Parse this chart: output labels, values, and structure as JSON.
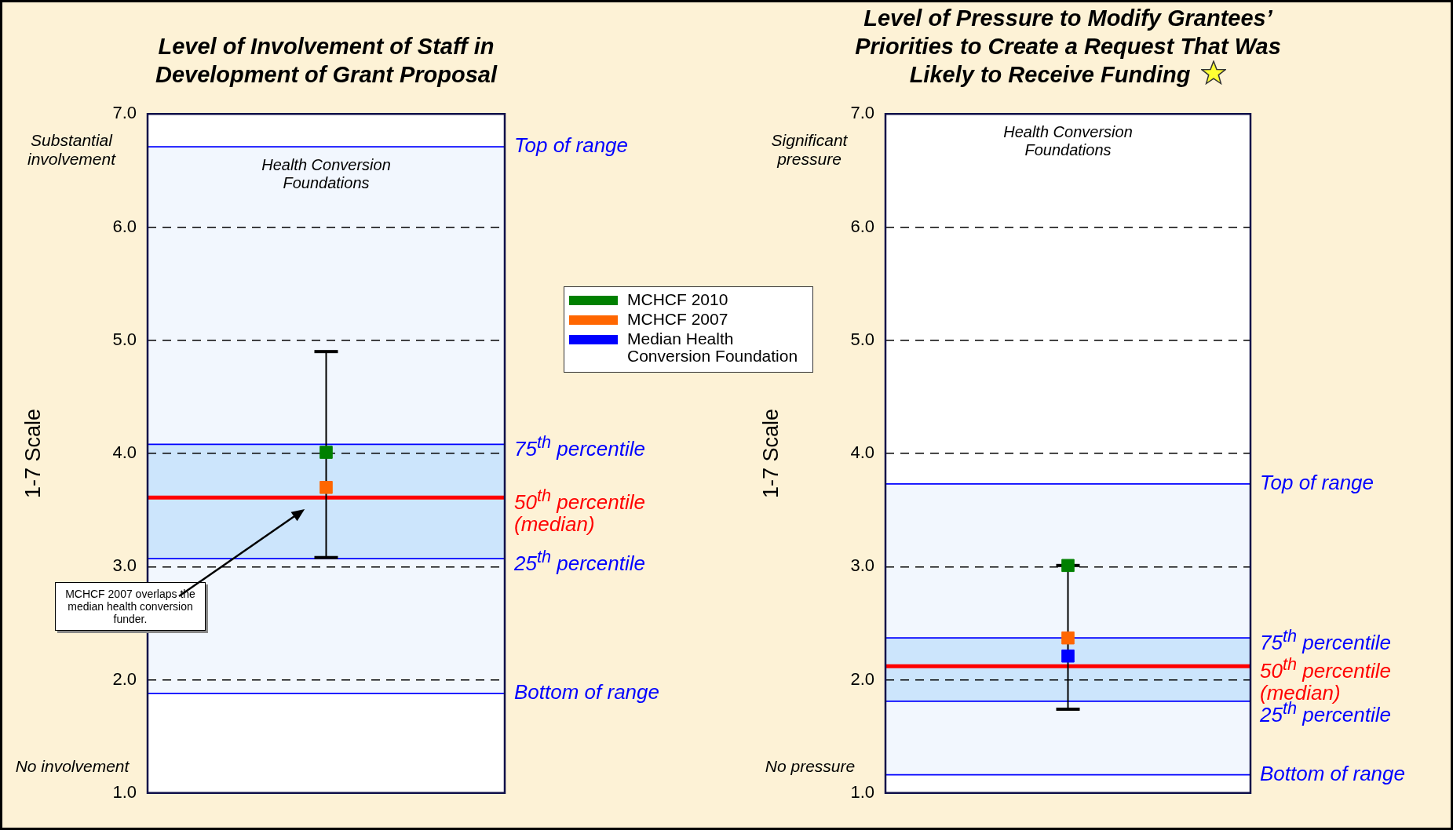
{
  "chart_data": [
    {
      "type": "scatter",
      "title": "Level of Involvement of Staff in Development of Grant Proposal",
      "ylabel": "1-7 Scale",
      "categories": [
        null
      ],
      "series": [
        {
          "name": "MCHCF 2010",
          "color": "#008000",
          "values": [
            4.01
          ],
          "errors": [
            [
              3.08,
              4.9
            ]
          ]
        },
        {
          "name": "MCHCF 2007",
          "color": "#ff6600",
          "values": [
            3.7
          ]
        },
        {
          "name": "Median Health Conversion Foundation",
          "color": "#0000ff",
          "values": [
            null
          ]
        }
      ],
      "ylim": [
        1,
        7
      ],
      "yticks": [
        {
          "value": 1,
          "label": "1.0"
        },
        {
          "value": 2,
          "label": "2.0"
        },
        {
          "value": 3,
          "label": "3.0"
        },
        {
          "value": 4,
          "label": "4.0"
        },
        {
          "value": 5,
          "label": "5.0"
        },
        {
          "value": 6,
          "label": "6.0"
        },
        {
          "value": 7,
          "label": "7.0"
        }
      ],
      "grid": "y",
      "legend": "right",
      "tick_labels": "y",
      "bands": [
        {
          "axis": "y",
          "from": 1.88,
          "to": 6.71,
          "color": "#f2f7fe"
        },
        {
          "axis": "y",
          "from": 3.07,
          "to": 4.08,
          "color": "#cce5fc"
        }
      ],
      "ref_lines": [
        {
          "axis": "y",
          "value": 6.71,
          "label": "Top of range",
          "color": "#0000ff"
        },
        {
          "axis": "y",
          "value": 4.08,
          "label": "75$^{th}$ percentile",
          "color": "#0000ff"
        },
        {
          "axis": "y",
          "value": 3.61,
          "label": "50$^{th}$ percentile (median)",
          "color": "#ff0000"
        },
        {
          "axis": "y",
          "value": 3.07,
          "label": "25$^{th}$ percentile",
          "color": "#0000ff"
        },
        {
          "axis": "y",
          "value": 1.88,
          "label": "Bottom of range",
          "color": "#0000ff"
        }
      ],
      "annotations": [
        "Substantial involvement",
        "No involvement",
        "Health Conversion Foundations",
        "MCHCF 2007 overlaps the median health conversion funder."
      ],
      "marker": "square"
    },
    {
      "type": "scatter",
      "title": "Level of Pressure to Modify Grantees’ Priorities to Create a Request That Was Likely to Receive Funding",
      "ylabel": "1-7 Scale",
      "categories": [
        null
      ],
      "series": [
        {
          "color": "#008000",
          "values": [
            3.01
          ],
          "errors": [
            [
              1.74,
              3.01
            ]
          ]
        },
        {
          "color": "#ff6600",
          "values": [
            2.37
          ]
        },
        {
          "color": "#0000ff",
          "values": [
            2.21
          ]
        }
      ],
      "ylim": [
        1,
        7
      ],
      "yticks": [
        {
          "value": 1,
          "label": "1.0"
        },
        {
          "value": 2,
          "label": "2.0"
        },
        {
          "value": 3,
          "label": "3.0"
        },
        {
          "value": 4,
          "label": "4.0"
        },
        {
          "value": 5,
          "label": "5.0"
        },
        {
          "value": 6,
          "label": "6.0"
        },
        {
          "value": 7,
          "label": "7.0"
        }
      ],
      "grid": "y",
      "tick_labels": "y",
      "bands": [
        {
          "axis": "y",
          "from": 1.16,
          "to": 3.73,
          "color": "#f2f7fe"
        },
        {
          "axis": "y",
          "from": 1.81,
          "to": 2.37,
          "color": "#cce5fc"
        }
      ],
      "ref_lines": [
        {
          "axis": "y",
          "value": 3.73,
          "label": "Top of range",
          "color": "#0000ff"
        },
        {
          "axis": "y",
          "value": 2.37,
          "label": "75$^{th}$ percentile",
          "color": "#0000ff"
        },
        {
          "axis": "y",
          "value": 2.12,
          "label": "50$^{th}$ percentile (median)",
          "color": "#ff0000"
        },
        {
          "axis": "y",
          "value": 1.81,
          "label": "25$^{th}$ percentile",
          "color": "#0000ff"
        },
        {
          "axis": "y",
          "value": 1.16,
          "label": "Bottom of range",
          "color": "#0000ff"
        }
      ],
      "annotations": [
        "Significant pressure",
        "No pressure",
        "Health Conversion Foundations"
      ],
      "marker": "square"
    }
  ]
}
